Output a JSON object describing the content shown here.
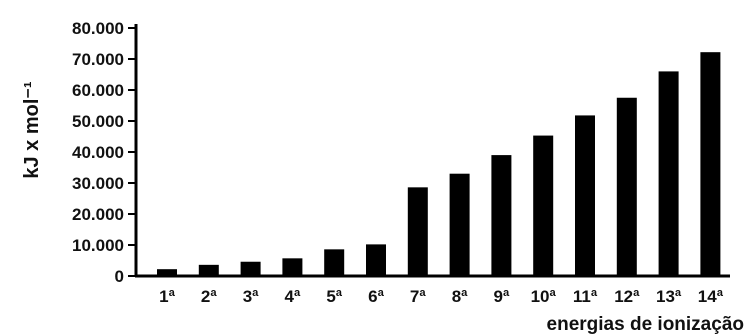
{
  "chart_data": {
    "type": "bar",
    "categories": [
      "1ª",
      "2ª",
      "3ª",
      "4ª",
      "5ª",
      "6ª",
      "7ª",
      "8ª",
      "9ª",
      "10ª",
      "11ª",
      "12ª",
      "13ª",
      "14ª"
    ],
    "values": [
      2200,
      3600,
      4600,
      5700,
      8600,
      10200,
      28600,
      33000,
      39000,
      45300,
      51800,
      57500,
      66000,
      72200
    ],
    "ylabel": "kJ x mol⁻¹",
    "xlabel": "energias de ionização",
    "ylim": [
      0,
      80000
    ],
    "yticks": [
      "0",
      "10.000",
      "20.000",
      "30.000",
      "40.000",
      "50.000",
      "60.000",
      "70.000",
      "80.000"
    ],
    "grid": false,
    "bar_color": "#000000"
  }
}
